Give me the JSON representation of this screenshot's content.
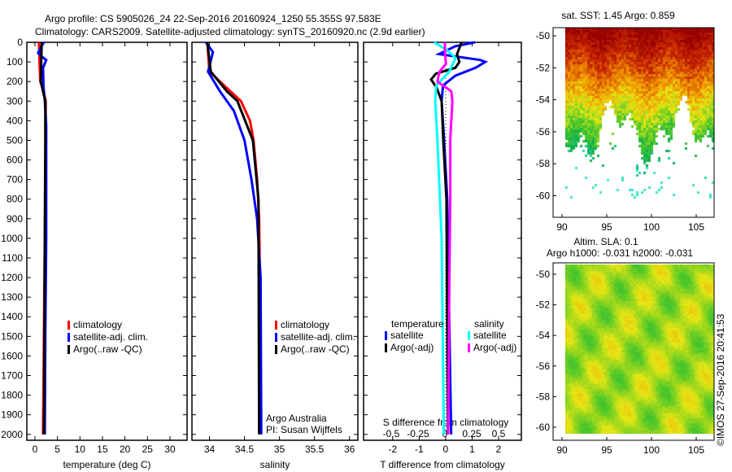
{
  "title_line1": "Argo profile: CS 5905026_24 22-Sep-2016 20160924_1250 55.355S 97.583E",
  "title_line2": "Climatology: CARS2009. Satellite-adjusted climatology: synTS_20160920.nc (2.9d earlier)",
  "credit": "Argo Australia",
  "pi": "PI: Susan Wijffels",
  "copyright": "©IMOS 27-Sep-2016 20:41:53",
  "colors": {
    "climatology": "#ff0000",
    "satellite": "#0000ff",
    "argo": "#000000",
    "sal_satellite": "#00ffff",
    "sal_argo": "#ff00ff"
  },
  "chart_data": [
    {
      "type": "line",
      "name": "temperature",
      "xlabel": "temperature (deg C)",
      "xlim": [
        -1.8,
        33.8
      ],
      "ylim": [
        2030,
        0
      ],
      "xticks": [
        "0",
        "5",
        "10",
        "15",
        "20",
        "25",
        "30"
      ],
      "xtick_values": [
        0,
        5,
        10,
        15,
        20,
        25,
        30
      ],
      "yticks": [
        "0",
        "100",
        "200",
        "300",
        "400",
        "500",
        "600",
        "700",
        "800",
        "900",
        "1000",
        "1100",
        "1200",
        "1300",
        "1400",
        "1500",
        "1600",
        "1700",
        "1800",
        "1900",
        "2000"
      ],
      "legend": [
        "climatology",
        "satellite-adj. clim.",
        "Argo(..raw -QC)"
      ],
      "series": [
        {
          "name": "climatology",
          "color": "#ff0000",
          "depth": [
            0,
            100,
            200,
            250,
            300,
            500,
            1000,
            1500,
            2000
          ],
          "values": [
            0.9,
            1.0,
            1.2,
            1.9,
            2.4,
            2.4,
            2.2,
            2.0,
            1.8
          ]
        },
        {
          "name": "satellite-adj. clim.",
          "color": "#0000ff",
          "depth": [
            0,
            30,
            55,
            70,
            90,
            130,
            230,
            300,
            420,
            1000,
            1500,
            2000
          ],
          "values": [
            2.0,
            1.2,
            0.7,
            1.4,
            2.5,
            1.8,
            1.9,
            2.2,
            2.5,
            2.5,
            2.3,
            2.2
          ]
        },
        {
          "name": "Argo(..raw -QC)",
          "color": "#000000",
          "depth": [
            0,
            100,
            200,
            250,
            300,
            500,
            1000,
            1500,
            2000
          ],
          "values": [
            1.5,
            1.4,
            1.3,
            1.8,
            2.3,
            2.3,
            2.2,
            2.1,
            2.0
          ]
        }
      ]
    },
    {
      "type": "line",
      "name": "salinity",
      "xlabel": "salinity",
      "xlim": [
        33.75,
        36.12
      ],
      "ylim": [
        2030,
        0
      ],
      "xticks": [
        "34",
        "34.5",
        "35",
        "35.5",
        "36"
      ],
      "xtick_values": [
        34,
        34.5,
        35,
        35.5,
        36
      ],
      "legend": [
        "climatology",
        "satellite-adj. clim.",
        "Argo(..raw -QC)"
      ],
      "series": [
        {
          "name": "climatology",
          "color": "#ff0000",
          "depth": [
            0,
            150,
            250,
            300,
            400,
            500,
            700,
            900,
            1200,
            2000
          ],
          "values": [
            33.97,
            34.0,
            34.3,
            34.45,
            34.58,
            34.63,
            34.68,
            34.71,
            34.72,
            34.72
          ]
        },
        {
          "name": "satellite-adj. clim.",
          "color": "#0000ff",
          "depth": [
            0,
            50,
            150,
            250,
            350,
            500,
            700,
            900,
            1200,
            2000
          ],
          "values": [
            33.95,
            34.05,
            33.98,
            34.15,
            34.35,
            34.5,
            34.6,
            34.68,
            34.73,
            34.74
          ]
        },
        {
          "name": "Argo(..raw -QC)",
          "color": "#000000",
          "depth": [
            0,
            150,
            250,
            300,
            500,
            800,
            2000
          ],
          "values": [
            33.97,
            34.02,
            34.25,
            34.4,
            34.62,
            34.7,
            34.71
          ]
        }
      ]
    },
    {
      "type": "line",
      "name": "difference",
      "xlabel": "T difference from climatology",
      "x2label": "S difference from climatology",
      "xlim": [
        -3.1,
        2.86
      ],
      "ylim": [
        2030,
        0
      ],
      "xticks": [
        "-2",
        "-1",
        "0",
        "1",
        "2"
      ],
      "xtick_values": [
        -2,
        -1,
        0,
        1,
        2
      ],
      "x2ticks": [
        "-0.5",
        "-0.25",
        "0",
        "0.25",
        "0.5"
      ],
      "x2tick_values": [
        -0.5,
        -0.25,
        0,
        0.25,
        0.5
      ],
      "legend_temperature": {
        "title": "temperature",
        "items": [
          "satellite",
          "Argo(-adj)"
        ]
      },
      "legend_salinity": {
        "title": "salinity",
        "items": [
          "satellite",
          "Argo(-adj)"
        ]
      },
      "series": [
        {
          "name": "T satellite",
          "axis": "T",
          "color": "#0000ff",
          "depth": [
            0,
            20,
            60,
            90,
            100,
            130,
            170,
            220,
            300,
            500,
            800,
            2000
          ],
          "values": [
            1.1,
            0.37,
            -0.25,
            1.3,
            1.5,
            1.13,
            0.37,
            -0.1,
            -0.15,
            -0.06,
            0.06,
            0.21
          ]
        },
        {
          "name": "T Argo(-adj)",
          "axis": "T",
          "color": "#000000",
          "depth": [
            0,
            30,
            60,
            100,
            130,
            160,
            190,
            230,
            300,
            500,
            800,
            2000
          ],
          "values": [
            0.6,
            0.52,
            0.43,
            0.52,
            0.37,
            -0.37,
            -0.55,
            -0.34,
            -0.15,
            -0.09,
            0.03,
            0.09
          ]
        },
        {
          "name": "S satellite",
          "axis": "S",
          "color": "#00ffff",
          "depth": [
            0,
            40,
            80,
            150,
            220,
            300,
            500,
            1000,
            2000
          ],
          "values": [
            -0.1,
            0.02,
            0.1,
            0.04,
            -0.08,
            -0.09,
            -0.07,
            -0.03,
            -0.01
          ]
        },
        {
          "name": "S Argo(-adj)",
          "axis": "S",
          "color": "#ff00ff",
          "depth": [
            0,
            50,
            110,
            150,
            200,
            250,
            300,
            500,
            800,
            1300,
            2000
          ],
          "values": [
            0.0,
            0.0,
            0.01,
            -0.05,
            -0.07,
            0.06,
            0.07,
            0.05,
            0.05,
            0.04,
            0.03
          ]
        }
      ]
    },
    {
      "type": "heatmap",
      "name": "sst-map",
      "title": "sat. SST: 1.45 Argo: 0.859",
      "xticks": [
        "90",
        "95",
        "100",
        "105"
      ],
      "yticks": [
        "-50",
        "-52",
        "-54",
        "-56",
        "-58",
        "-60"
      ]
    },
    {
      "type": "heatmap",
      "name": "sla-map",
      "title": "Altim. SLA: 0.1",
      "subtitle": "Argo h1000: -0.031 h2000: -0.031",
      "xticks": [
        "90",
        "95",
        "100",
        "105"
      ],
      "yticks": [
        "-50",
        "-52",
        "-54",
        "-56",
        "-58",
        "-60"
      ]
    }
  ]
}
